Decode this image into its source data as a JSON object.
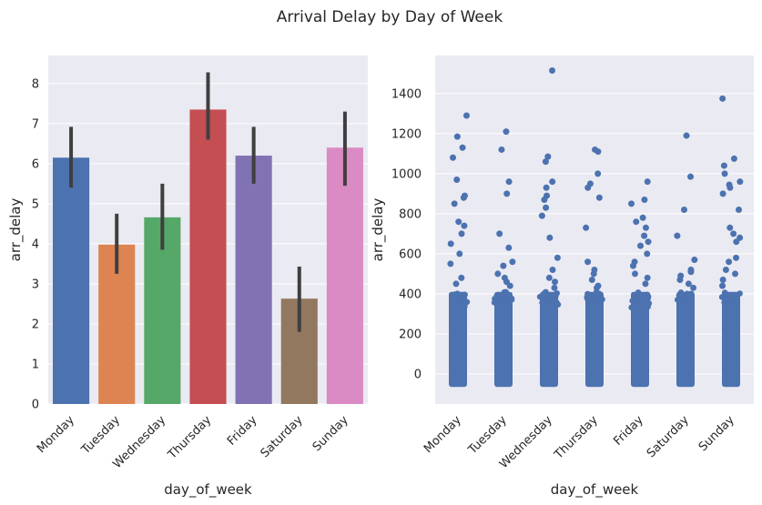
{
  "figure": {
    "suptitle": "Arrival Delay by Day of Week"
  },
  "chart_data": [
    {
      "type": "bar",
      "xlabel": "day_of_week",
      "ylabel": "arr_delay",
      "categories": [
        "Monday",
        "Tuesday",
        "Wednesday",
        "Thursday",
        "Friday",
        "Saturday",
        "Sunday"
      ],
      "values": [
        6.15,
        3.98,
        4.66,
        7.35,
        6.2,
        2.63,
        6.4
      ],
      "error_low": [
        5.4,
        3.25,
        3.85,
        6.6,
        5.5,
        1.8,
        5.45
      ],
      "error_high": [
        6.92,
        4.75,
        5.5,
        8.28,
        6.92,
        3.43,
        7.3
      ],
      "colors": [
        "#4c72b0",
        "#dd8452",
        "#55a868",
        "#c44e52",
        "#8172b3",
        "#937860",
        "#da8bc3"
      ],
      "error_color": "#3f3f3f",
      "ylim": [
        0,
        8.7
      ],
      "yticks": [
        0,
        1,
        2,
        3,
        4,
        5,
        6,
        7,
        8
      ],
      "grid": true
    },
    {
      "type": "scatter",
      "subtype": "strip",
      "xlabel": "day_of_week",
      "ylabel": "arr_delay",
      "categories": [
        "Monday",
        "Tuesday",
        "Wednesday",
        "Thursday",
        "Friday",
        "Saturday",
        "Sunday"
      ],
      "color": "#4c72b0",
      "ylim": [
        -150,
        1590
      ],
      "yticks": [
        0,
        200,
        400,
        600,
        800,
        1000,
        1200,
        1400
      ],
      "grid": true,
      "dense_range": [
        -65,
        410
      ],
      "outliers": [
        [
          1290,
          1185,
          1130,
          1080,
          970,
          890,
          880,
          850,
          760,
          740,
          700,
          650,
          600,
          550,
          480,
          450
        ],
        [
          1210,
          1120,
          960,
          900,
          700,
          630,
          560,
          540,
          500,
          480,
          460,
          440
        ],
        [
          1515,
          1085,
          1060,
          960,
          930,
          890,
          870,
          830,
          790,
          680,
          580,
          520,
          480,
          460,
          430
        ],
        [
          1120,
          1110,
          1000,
          950,
          930,
          880,
          730,
          560,
          520,
          500,
          470,
          440,
          430
        ],
        [
          960,
          870,
          850,
          780,
          760,
          730,
          690,
          660,
          640,
          600,
          560,
          540,
          500,
          480,
          450
        ],
        [
          1190,
          985,
          820,
          690,
          570,
          520,
          510,
          490,
          470,
          450,
          430
        ],
        [
          1375,
          1075,
          1040,
          1000,
          960,
          945,
          930,
          900,
          820,
          730,
          700,
          680,
          660,
          580,
          560,
          520,
          500,
          470,
          440
        ]
      ]
    }
  ]
}
